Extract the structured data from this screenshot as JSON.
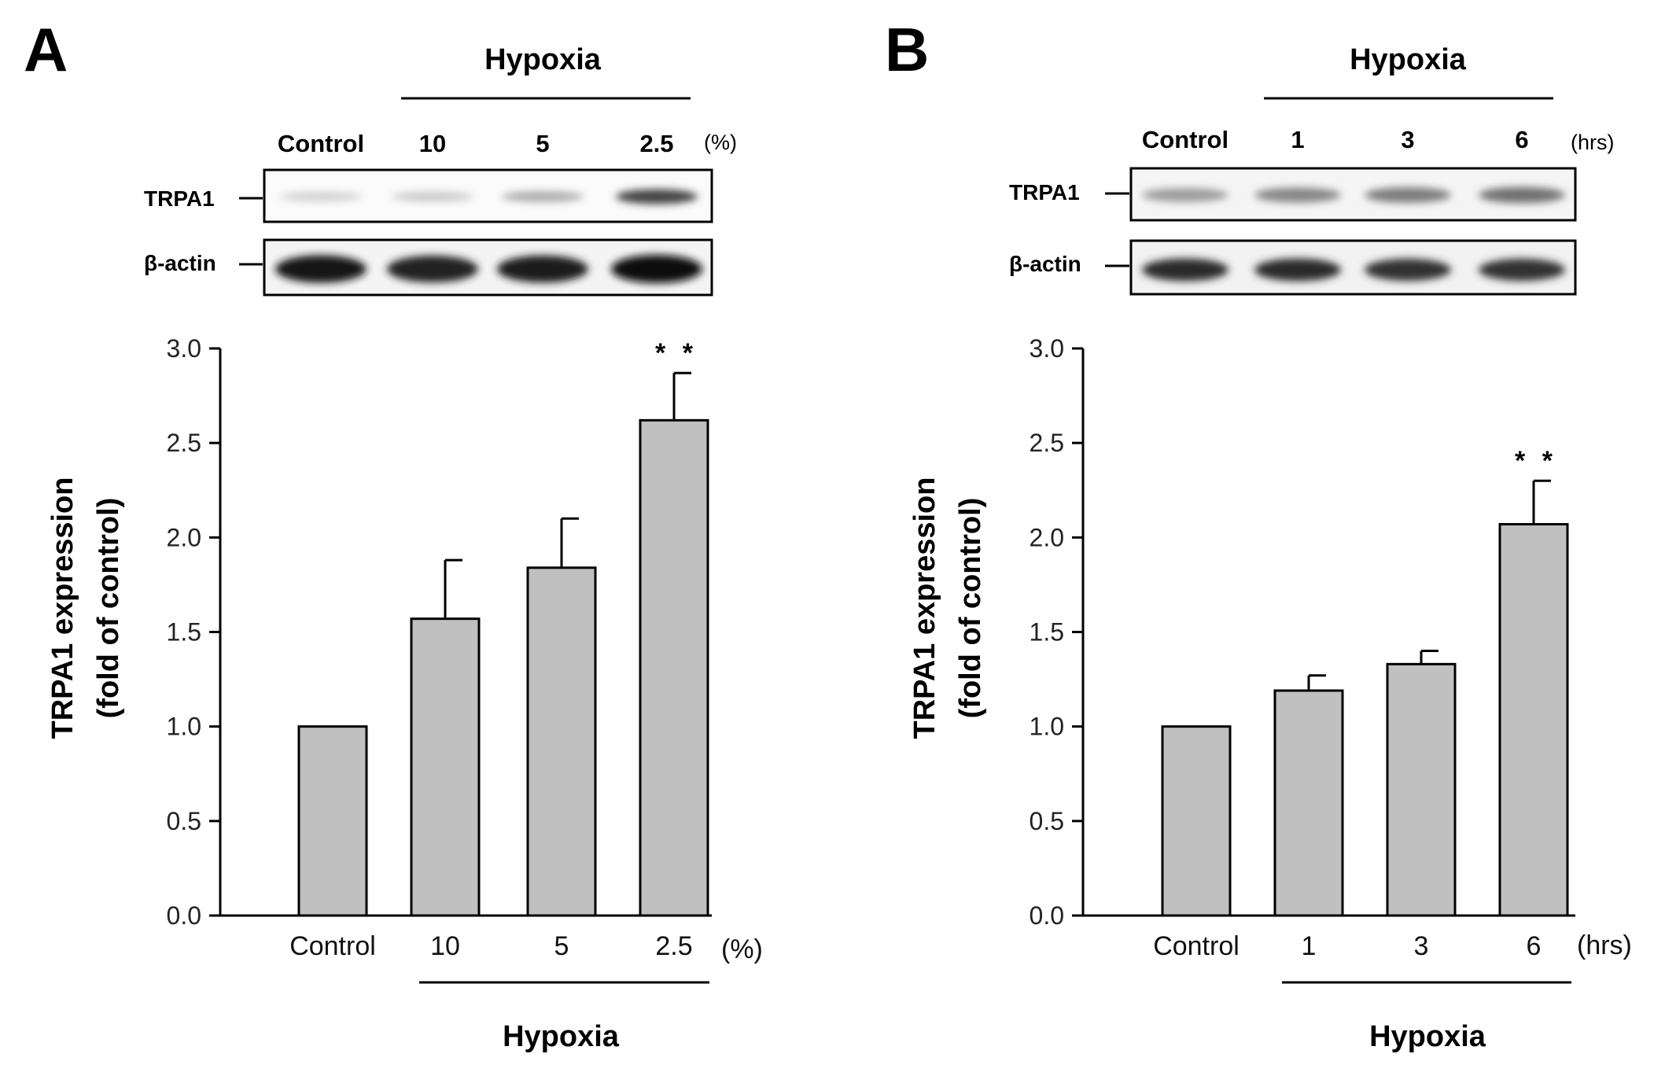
{
  "panels": [
    {
      "letter": "A",
      "header": "Hypoxia",
      "lane_labels": [
        "Control",
        "10",
        "5",
        "2.5"
      ],
      "lane_unit": "(%)",
      "blot_labels": [
        "TRPA1",
        "β-actin"
      ],
      "trpa1_band_intensity": [
        0.12,
        0.15,
        0.28,
        0.75
      ],
      "actin_band_intensity": [
        0.95,
        0.9,
        0.92,
        1.0
      ],
      "x_unit": "(%)",
      "x_group_label": "Hypoxia",
      "ylabel_line1": "TRPA1 expression",
      "ylabel_line2": "(fold of control)",
      "significance": [
        "",
        "",
        "",
        "* *"
      ]
    },
    {
      "letter": "B",
      "header": "Hypoxia",
      "lane_labels": [
        "Control",
        "1",
        "3",
        "6"
      ],
      "lane_unit": "(hrs)",
      "blot_labels": [
        "TRPA1",
        "β-actin"
      ],
      "trpa1_band_intensity": [
        0.35,
        0.45,
        0.5,
        0.55
      ],
      "actin_band_intensity": [
        0.85,
        0.85,
        0.82,
        0.82
      ],
      "x_unit": "(hrs)",
      "x_group_label": "Hypoxia",
      "ylabel_line1": "TRPA1 expression",
      "ylabel_line2": "(fold of control)",
      "significance": [
        "",
        "",
        "",
        "* *"
      ]
    }
  ],
  "colors": {
    "bar_fill": "#c0c0c0",
    "bar_stroke": "#000000",
    "axis": "#000000"
  },
  "chart_data": [
    {
      "type": "bar",
      "categories": [
        "Control",
        "10",
        "5",
        "2.5"
      ],
      "values": [
        1.0,
        1.57,
        1.84,
        2.62
      ],
      "error": [
        0,
        0.31,
        0.26,
        0.25
      ],
      "xlabel": "Hypoxia",
      "ylabel": "TRPA1 expression (fold of control)",
      "ylim": [
        0,
        3.0
      ],
      "yticks": [
        "0.0",
        "0.5",
        "1.0",
        "1.5",
        "2.0",
        "2.5",
        "3.0"
      ],
      "grid": false
    },
    {
      "type": "bar",
      "categories": [
        "Control",
        "1",
        "3",
        "6"
      ],
      "values": [
        1.0,
        1.19,
        1.33,
        2.07
      ],
      "error": [
        0,
        0.08,
        0.07,
        0.23
      ],
      "xlabel": "Hypoxia",
      "ylabel": "TRPA1 expression (fold of control)",
      "ylim": [
        0,
        3.0
      ],
      "yticks": [
        "0.0",
        "0.5",
        "1.0",
        "1.5",
        "2.0",
        "2.5",
        "3.0"
      ],
      "grid": false
    }
  ]
}
